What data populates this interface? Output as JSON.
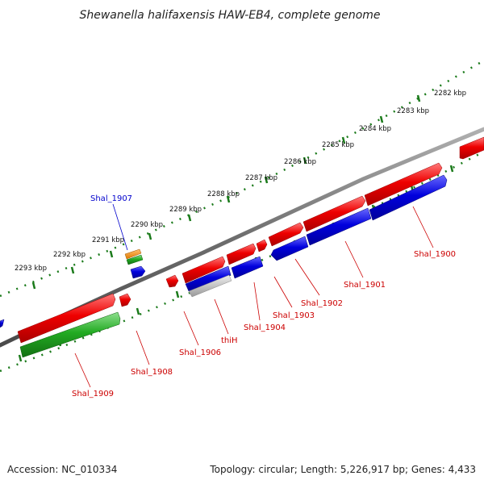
{
  "title": "Shewanella halifaxensis HAW-EB4, complete genome",
  "ruler_labels": [
    "2282 kbp",
    "2283 kbp",
    "2284 kbp",
    "2285 kbp",
    "2286 kbp",
    "2287 kbp",
    "2288 kbp",
    "2289 kbp",
    "2290 kbp",
    "2291 kbp",
    "2292 kbp",
    "2293 kbp"
  ],
  "gene_labels": {
    "shal_1900": "Shal_1900",
    "shal_1901": "Shal_1901",
    "shal_1902": "Shal_1902",
    "shal_1903": "Shal_1903",
    "shal_1904": "Shal_1904",
    "thih": "thiH",
    "shal_1906": "Shal_1906",
    "shal_1907": "Shal_1907",
    "shal_1908": "Shal_1908",
    "shal_1909": "Shal_1909"
  },
  "footer": {
    "accession": "Accession: NC_010334",
    "topology": "Topology: circular; Length: 5,226,917 bp; Genes: 4,433"
  },
  "colors": {
    "forward_gene": "#ee0000",
    "reverse_gene": "#0000dd",
    "rna_feature": "#22aa22",
    "other_feature": "#ee8800",
    "backbone": "#777777",
    "tick": "#1a7a1a",
    "label_red": "#cc0000",
    "label_blue": "#0000cc"
  }
}
